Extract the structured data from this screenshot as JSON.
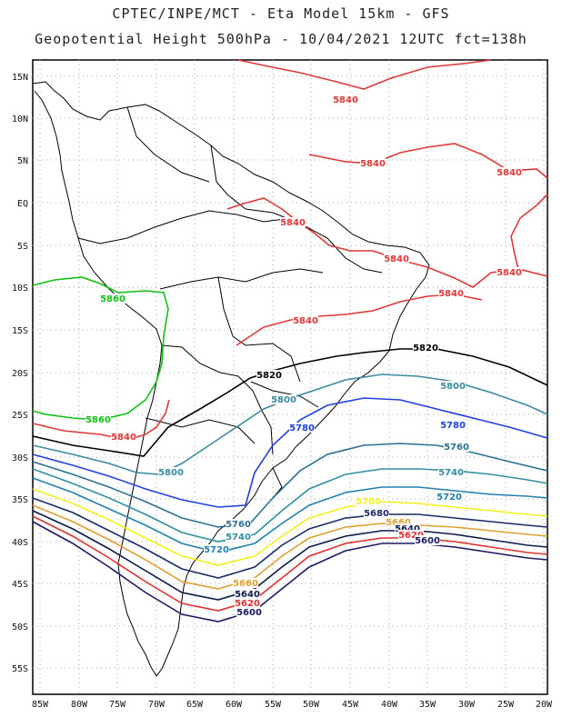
{
  "header": {
    "line1": "CPTEC/INPE/MCT -  Eta Model 15km - GFS",
    "line2": "Geopotential Height 500hPa - 10/04/2021 12UTC fct=138h"
  },
  "axes": {
    "lat_labels": [
      "15N",
      "10N",
      "5N",
      "EQ",
      "5S",
      "10S",
      "15S",
      "20S",
      "25S",
      "30S",
      "35S",
      "40S",
      "45S",
      "50S",
      "55S"
    ],
    "lon_labels": [
      "85W",
      "80W",
      "75W",
      "70W",
      "65W",
      "60W",
      "55W",
      "50W",
      "45W",
      "40W",
      "35W",
      "30W",
      "25W",
      "20W"
    ]
  },
  "colors": {
    "5600": "#1a1a66",
    "5620": "#e03030",
    "5640": "#0a1a4a",
    "5660": "#e0a030",
    "5680": "#1a2a6a",
    "5700": "#f0f020",
    "5720": "#2080b0",
    "5740": "#3090a0",
    "5760": "#2a7090",
    "5780": "#2040e0",
    "5800": "#3a8aa0",
    "5820": "#000000",
    "5840": "#e03838",
    "5860": "#10c010"
  },
  "contour_labels": [
    {
      "text": "5840",
      "color": "5840"
    },
    {
      "text": "5840",
      "color": "5840"
    },
    {
      "text": "5840",
      "color": "5840"
    },
    {
      "text": "5840",
      "color": "5840"
    },
    {
      "text": "5840",
      "color": "5840"
    },
    {
      "text": "5840",
      "color": "5840"
    },
    {
      "text": "5840",
      "color": "5840"
    },
    {
      "text": "5840",
      "color": "5840"
    },
    {
      "text": "5840",
      "color": "5840"
    },
    {
      "text": "5860",
      "color": "5860"
    },
    {
      "text": "5860",
      "color": "5860"
    },
    {
      "text": "5820",
      "color": "5820"
    },
    {
      "text": "5820",
      "color": "5820"
    },
    {
      "text": "5800",
      "color": "5800"
    },
    {
      "text": "5800",
      "color": "5800"
    },
    {
      "text": "5800",
      "color": "5800"
    },
    {
      "text": "5780",
      "color": "5780"
    },
    {
      "text": "5780",
      "color": "5780"
    },
    {
      "text": "5760",
      "color": "5760"
    },
    {
      "text": "5760",
      "color": "5760"
    },
    {
      "text": "5740",
      "color": "5740"
    },
    {
      "text": "5740",
      "color": "5740"
    },
    {
      "text": "5720",
      "color": "5720"
    },
    {
      "text": "5720",
      "color": "5720"
    },
    {
      "text": "5700",
      "color": "5700"
    },
    {
      "text": "5680",
      "color": "5680"
    },
    {
      "text": "5660",
      "color": "5660"
    },
    {
      "text": "5660",
      "color": "5660"
    },
    {
      "text": "5640",
      "color": "5640"
    },
    {
      "text": "5640",
      "color": "5640"
    },
    {
      "text": "5620",
      "color": "5620"
    },
    {
      "text": "5620",
      "color": "5620"
    },
    {
      "text": "5600",
      "color": "5600"
    },
    {
      "text": "5600",
      "color": "5600"
    }
  ]
}
